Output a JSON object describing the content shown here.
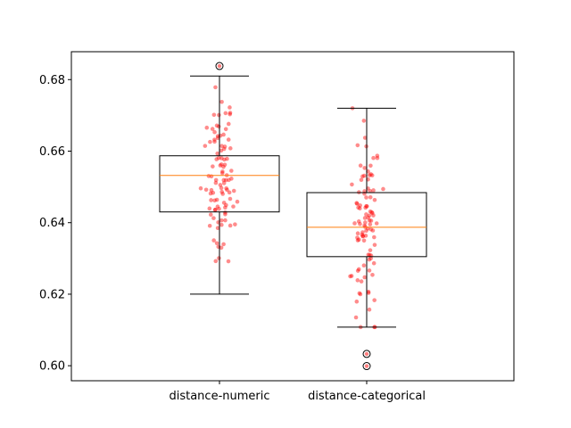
{
  "chart_data": {
    "type": "box",
    "title": "",
    "xlabel": "",
    "ylabel": "",
    "categories": [
      "distance-numeric",
      "distance-categorical"
    ],
    "ylim": [
      0.5958,
      0.6878
    ],
    "yticks": [
      "0.60",
      "0.62",
      "0.64",
      "0.66",
      "0.68"
    ],
    "ytick_values": [
      0.6,
      0.62,
      0.64,
      0.66,
      0.68
    ],
    "grid": false,
    "boxes": [
      {
        "category": "distance-numeric",
        "whisker_low": 0.62,
        "q1": 0.643,
        "median": 0.6532,
        "q3": 0.6587,
        "whisker_high": 0.681,
        "outliers": [
          0.6838
        ]
      },
      {
        "category": "distance-categorical",
        "whisker_low": 0.6108,
        "q1": 0.6305,
        "median": 0.6387,
        "q3": 0.6484,
        "whisker_high": 0.672,
        "outliers": [
          0.6033,
          0.5999
        ]
      }
    ],
    "colors": {
      "box": "#000000",
      "median": "#ff7f0e",
      "points": "#ff0000",
      "outlier_fill": "#ffffff",
      "outlier_edge": "#000000"
    }
  }
}
